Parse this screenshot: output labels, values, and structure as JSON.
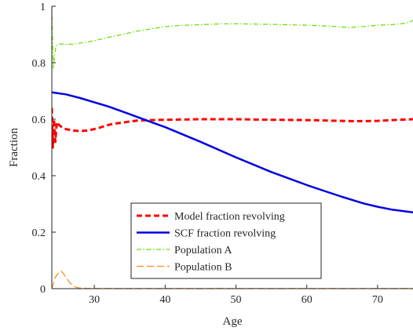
{
  "chart_data": {
    "type": "line",
    "title": "",
    "xlabel": "Age",
    "ylabel": "Fraction",
    "xlim": [
      24,
      75
    ],
    "ylim": [
      0,
      1
    ],
    "xticks": [
      30,
      40,
      50,
      60,
      70
    ],
    "yticks": [
      0,
      0.2,
      0.4,
      0.6,
      0.8,
      1
    ],
    "ytick_labels": [
      "0",
      "0.2",
      "0.4",
      "0.6",
      "0.8",
      "1"
    ],
    "grid": false,
    "legend_placement": "bottom-center",
    "series": [
      {
        "name": "Model fraction revolving",
        "color": "#ff0000",
        "dash": "dashed-thick",
        "x": [
          24,
          24.15,
          24.3,
          24.5,
          24.7,
          25,
          25.5,
          26,
          27,
          28,
          29,
          30,
          31,
          32,
          33,
          34,
          35,
          36,
          38,
          40,
          45,
          50,
          55,
          60,
          65,
          67,
          70,
          72,
          75
        ],
        "y": [
          0.64,
          0.5,
          0.6,
          0.52,
          0.59,
          0.58,
          0.57,
          0.565,
          0.56,
          0.558,
          0.56,
          0.565,
          0.572,
          0.58,
          0.585,
          0.588,
          0.592,
          0.595,
          0.597,
          0.598,
          0.6,
          0.6,
          0.598,
          0.597,
          0.594,
          0.593,
          0.594,
          0.597,
          0.6
        ]
      },
      {
        "name": "SCF fraction revolving",
        "color": "#0000e0",
        "dash": "solid",
        "x": [
          24,
          26,
          28,
          30,
          32,
          35,
          38,
          40,
          45,
          50,
          55,
          60,
          62,
          65,
          68,
          70,
          72,
          75
        ],
        "y": [
          0.695,
          0.688,
          0.675,
          0.66,
          0.645,
          0.618,
          0.59,
          0.572,
          0.52,
          0.465,
          0.413,
          0.367,
          0.35,
          0.325,
          0.302,
          0.29,
          0.28,
          0.27
        ]
      },
      {
        "name": "Population A",
        "color": "#66dd00",
        "dash": "dash-dot",
        "x": [
          24,
          24.2,
          24.4,
          24.6,
          25,
          25.5,
          26,
          27,
          28,
          29,
          30,
          32,
          34,
          36,
          38,
          40,
          42,
          45,
          48,
          50,
          55,
          60,
          63,
          66,
          68,
          70,
          72,
          74,
          75
        ],
        "y": [
          1.0,
          0.78,
          0.83,
          0.86,
          0.867,
          0.866,
          0.865,
          0.866,
          0.87,
          0.873,
          0.878,
          0.89,
          0.9,
          0.912,
          0.92,
          0.928,
          0.932,
          0.935,
          0.938,
          0.938,
          0.936,
          0.933,
          0.93,
          0.925,
          0.928,
          0.933,
          0.935,
          0.94,
          0.95
        ]
      },
      {
        "name": "Population B",
        "color": "#ff8c1a",
        "dash": "dashed-long",
        "x": [
          24,
          24.5,
          25,
          25.3,
          25.6,
          26,
          26.5,
          27,
          27.5,
          28,
          29,
          30,
          40,
          50,
          60,
          70,
          75
        ],
        "y": [
          0.0,
          0.04,
          0.058,
          0.062,
          0.055,
          0.04,
          0.022,
          0.01,
          0.004,
          0.002,
          0.001,
          0.0005,
          0.0005,
          0.0005,
          0.0005,
          0.0005,
          0.0005
        ]
      }
    ]
  }
}
